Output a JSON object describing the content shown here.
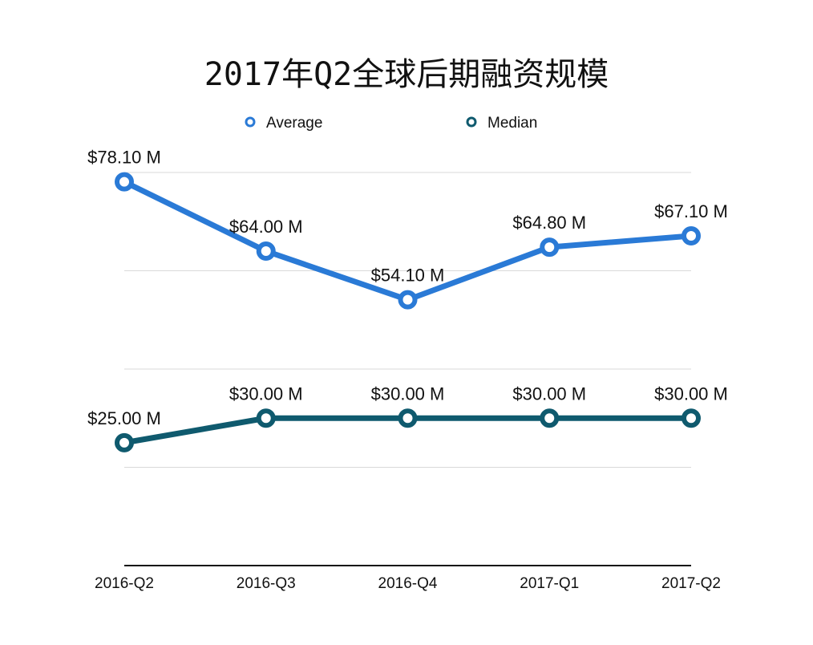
{
  "chart_data": {
    "type": "line",
    "title": "2017年Q2全球后期融资规模",
    "xlabel": "",
    "ylabel": "",
    "categories": [
      "2016-Q2",
      "2016-Q3",
      "2016-Q4",
      "2017-Q1",
      "2017-Q2"
    ],
    "ylim": [
      0,
      80
    ],
    "grid": true,
    "legend_position": "top",
    "series": [
      {
        "name": "Average",
        "color": "#2a7ad6",
        "values": [
          78.1,
          64.0,
          54.1,
          64.8,
          67.1
        ],
        "labels": [
          "$78.10 M",
          "$64.00 M",
          "$54.10 M",
          "$64.80 M",
          "$67.10 M"
        ]
      },
      {
        "name": "Median",
        "color": "#0f5a6e",
        "values": [
          25.0,
          30.0,
          30.0,
          30.0,
          30.0
        ],
        "labels": [
          "$25.00 M",
          "$30.00 M",
          "$30.00 M",
          "$30.00 M",
          "$30.00 M"
        ]
      }
    ]
  }
}
